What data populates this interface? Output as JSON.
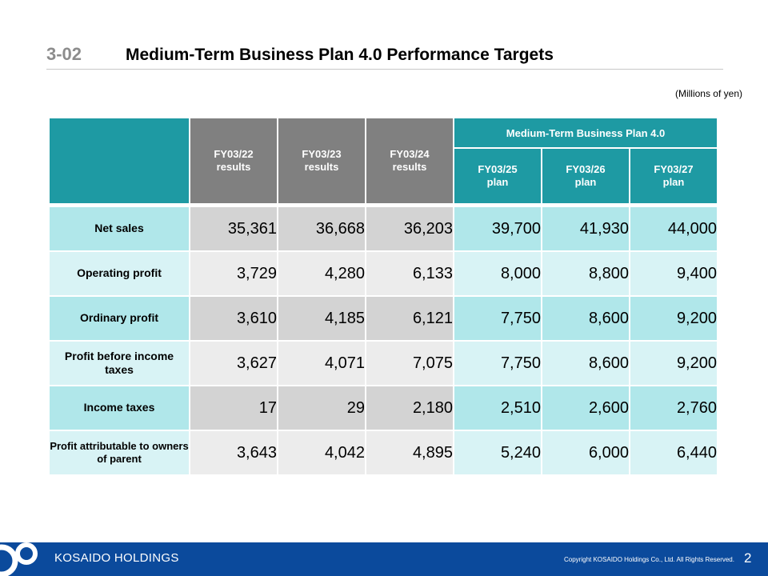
{
  "header": {
    "slide_number": "3-02",
    "title": "Medium-Term Business Plan 4.0 Performance Targets"
  },
  "unit_note": "(Millions of yen)",
  "table": {
    "historical_headers": [
      {
        "line1": "FY03/22",
        "line2": "results"
      },
      {
        "line1": "FY03/23",
        "line2": "results"
      },
      {
        "line1": "FY03/24",
        "line2": "results"
      }
    ],
    "plan_group_header": "Medium-Term Business Plan 4.0",
    "plan_headers": [
      {
        "line1": "FY03/25",
        "line2": "plan"
      },
      {
        "line1": "FY03/26",
        "line2": "plan"
      },
      {
        "line1": "FY03/27",
        "line2": "plan"
      }
    ],
    "rows": [
      {
        "label": "Net sales",
        "values": [
          "35,361",
          "36,668",
          "36,203",
          "39,700",
          "41,930",
          "44,000"
        ]
      },
      {
        "label": "Operating profit",
        "values": [
          "3,729",
          "4,280",
          "6,133",
          "8,000",
          "8,800",
          "9,400"
        ]
      },
      {
        "label": "Ordinary profit",
        "values": [
          "3,610",
          "4,185",
          "6,121",
          "7,750",
          "8,600",
          "9,200"
        ]
      },
      {
        "label": "Profit before income taxes",
        "values": [
          "3,627",
          "4,071",
          "7,075",
          "7,750",
          "8,600",
          "9,200"
        ]
      },
      {
        "label": "Income taxes",
        "values": [
          "17",
          "29",
          "2,180",
          "2,510",
          "2,600",
          "2,760"
        ]
      },
      {
        "label": "Profit attributable to owners of parent",
        "values": [
          "3,643",
          "4,042",
          "4,895",
          "5,240",
          "6,000",
          "6,440"
        ]
      }
    ]
  },
  "footer": {
    "company": "KOSAIDO HOLDINGS",
    "copyright": "Copyright KOSAIDO Holdings Co., Ltd. All Rights Reserved.",
    "page_number": "2"
  },
  "colors": {
    "teal_header": "#1e9aa3",
    "gray_header": "#808080",
    "footer_blue": "#0b4a9c"
  }
}
